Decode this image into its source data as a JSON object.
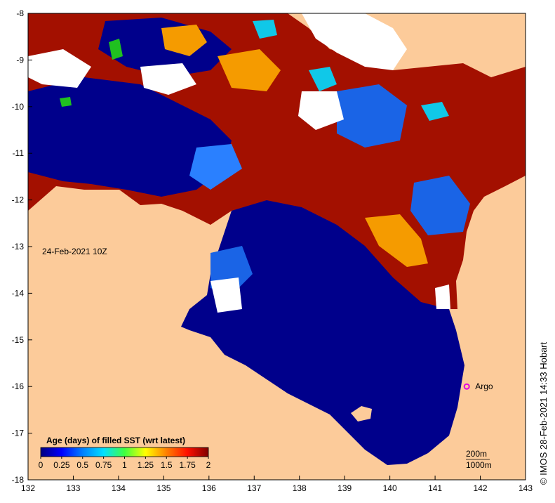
{
  "map": {
    "date_label": "24-Feb-2021 10Z",
    "x_ticks": [
      "132",
      "133",
      "134",
      "135",
      "136",
      "137",
      "138",
      "139",
      "140",
      "141",
      "142",
      "143"
    ],
    "y_ticks": [
      "-8",
      "-9",
      "-10",
      "-11",
      "-12",
      "-13",
      "-14",
      "-15",
      "-16",
      "-17",
      "-18"
    ],
    "lon_range": [
      132,
      143
    ],
    "lat_range": [
      -18,
      -8
    ],
    "colors": {
      "land": "#fccb9a",
      "no_data": "#ffffff",
      "fresh": "#00008b",
      "stale": "#a31000"
    }
  },
  "colorbar": {
    "title": "Age (days) of filled SST (wrt latest)",
    "tick_labels": [
      "0",
      "0.25",
      "0.5",
      "0.75",
      "1",
      "1.25",
      "1.5",
      "1.75",
      "2"
    ],
    "range": [
      0,
      2
    ]
  },
  "contours": {
    "label_1": "200m",
    "label_2": "1000m"
  },
  "argo": {
    "label": "Argo",
    "lon": 141.7,
    "lat": -16.0,
    "color": "#e000e0"
  },
  "credit": "© IMOS 28-Feb-2021 14:33 Hobart"
}
